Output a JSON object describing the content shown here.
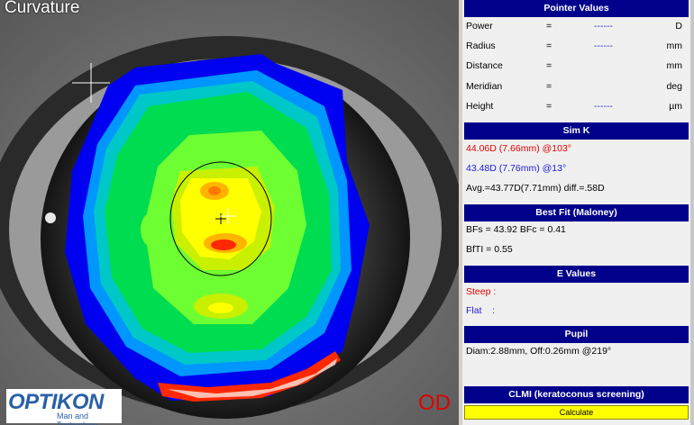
{
  "view": {
    "title": "Curvature",
    "eye": "OD"
  },
  "logo": {
    "name": "OPTIKON",
    "tagline": "Man and Technology"
  },
  "pointer_values": {
    "header": "Pointer Values",
    "rows": [
      {
        "label": "Power",
        "eq": "=",
        "value": "------",
        "unit": "D"
      },
      {
        "label": "Radius",
        "eq": "=",
        "value": "------",
        "unit": "mm"
      },
      {
        "label": "Distance",
        "eq": "=",
        "value": "",
        "unit": "mm"
      },
      {
        "label": "Meridian",
        "eq": "=",
        "value": "",
        "unit": "deg"
      },
      {
        "label": "Height",
        "eq": "=",
        "value": "------",
        "unit": "µm"
      }
    ]
  },
  "sim_k": {
    "header": "Sim K",
    "steep": "44.06D (7.66mm) @103°",
    "flat": "43.48D (7.76mm) @13°",
    "avg": "Avg.=43.77D(7.71mm) diff.=.58D"
  },
  "best_fit": {
    "header": "Best Fit (Maloney)",
    "bfs": "BFs = 43.92 BFc = 0.41",
    "bfti": "BfTI = 0.55"
  },
  "e_values": {
    "header": "E Values",
    "steep": "Steep :",
    "flat": "Flat    :"
  },
  "pupil": {
    "header": "Pupil",
    "diam": "Diam:2.88mm, Off:0.26mm @219°"
  },
  "clmi": {
    "header": "CLMI (keratoconus screening)",
    "button": "Calculate"
  },
  "colors": {
    "header_bg": "#00008b",
    "button_bg": "#ffff00",
    "steep": "#e00000",
    "flat": "#1a1adc"
  }
}
